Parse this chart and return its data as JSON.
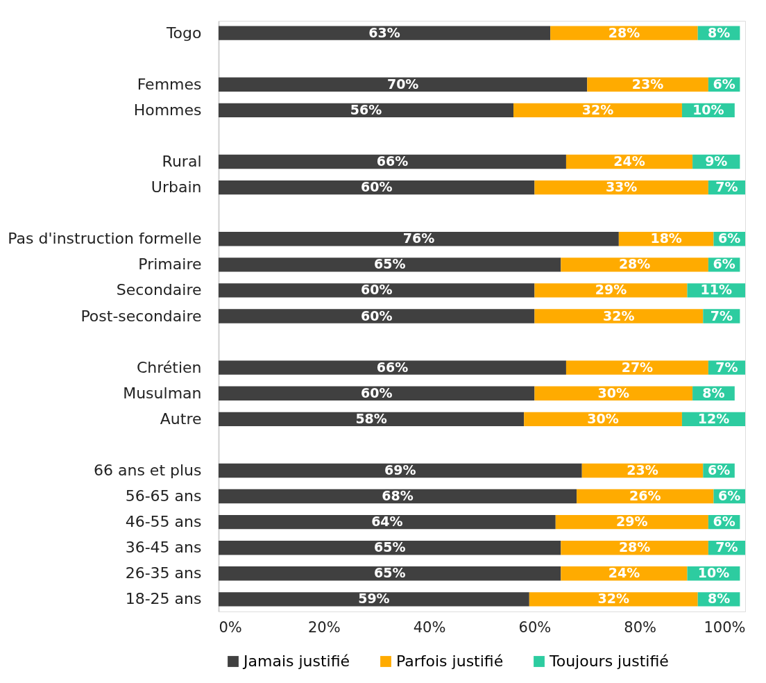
{
  "chart_data": {
    "type": "bar",
    "orientation": "horizontal",
    "stacked": true,
    "categories": [
      "Togo",
      null,
      "Femmes",
      "Hommes",
      null,
      "Rural",
      "Urbain",
      null,
      "Pas d'instruction formelle",
      "Primaire",
      "Secondaire",
      "Post-secondaire",
      null,
      "Chrétien",
      "Musulman",
      "Autre",
      null,
      "66 ans et plus",
      "56-65 ans",
      "46-55 ans",
      "36-45 ans",
      "26-35 ans",
      "18-25 ans"
    ],
    "series": [
      {
        "name": "Jamais justifié",
        "color": "#404040",
        "values": [
          63,
          null,
          70,
          56,
          null,
          66,
          60,
          null,
          76,
          65,
          60,
          60,
          null,
          66,
          60,
          58,
          null,
          69,
          68,
          64,
          65,
          65,
          59
        ],
        "value_labels": [
          "63%",
          null,
          "70%",
          "56%",
          null,
          "66%",
          "60%",
          null,
          "76%",
          "65%",
          "60%",
          "60%",
          null,
          "66%",
          "60%",
          "58%",
          null,
          "69%",
          "68%",
          "64%",
          "65%",
          "65%",
          "59%"
        ]
      },
      {
        "name": "Parfois justifié",
        "color": "#ffab00",
        "values": [
          28,
          null,
          23,
          32,
          null,
          24,
          33,
          null,
          18,
          28,
          29,
          32,
          null,
          27,
          30,
          30,
          null,
          23,
          26,
          29,
          28,
          24,
          32
        ],
        "value_labels": [
          "28%",
          null,
          "23%",
          "32%",
          null,
          "24%",
          "33%",
          null,
          "18%",
          "28%",
          "29%",
          "32%",
          null,
          "27%",
          "30%",
          "30%",
          null,
          "23%",
          "26%",
          "29%",
          "28%",
          "24%",
          "32%"
        ]
      },
      {
        "name": "Toujours justifié",
        "color": "#2dcca0",
        "values": [
          8,
          null,
          6,
          10,
          null,
          9,
          7,
          null,
          6,
          6,
          11,
          7,
          null,
          7,
          8,
          12,
          null,
          6,
          6,
          6,
          7,
          10,
          8
        ],
        "value_labels": [
          "8%",
          null,
          "6%",
          "10%",
          null,
          "9%",
          "7%",
          null,
          "6%",
          "6%",
          "11%",
          "7%",
          null,
          "7%",
          "8%",
          "12%",
          null,
          "6%",
          "6%",
          "6%",
          "7%",
          "10%",
          "8%"
        ]
      }
    ],
    "xlim": [
      0,
      100
    ],
    "xticks": [
      {
        "value": 0,
        "label": "0%"
      },
      {
        "value": 20,
        "label": "20%"
      },
      {
        "value": 40,
        "label": "40%"
      },
      {
        "value": 60,
        "label": "60%"
      },
      {
        "value": 80,
        "label": "80%"
      },
      {
        "value": 100,
        "label": "100%"
      }
    ],
    "grid": false,
    "legend": "bottom"
  }
}
